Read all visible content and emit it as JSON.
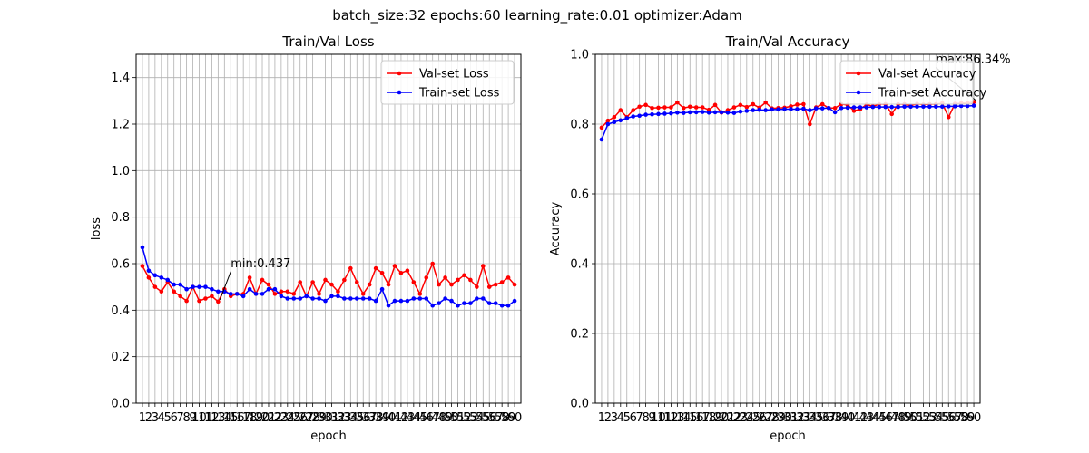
{
  "figure": {
    "suptitle": "batch_size:32   epochs:60   learning_rate:0.01   optimizer:Adam"
  },
  "chart_data": [
    {
      "type": "line",
      "title": "Train/Val Loss",
      "xlabel": "epoch",
      "ylabel": "loss",
      "ylim": [
        0,
        1.5
      ],
      "yticks": [
        "0.0",
        "0.2",
        "0.4",
        "0.6",
        "0.8",
        "1.0",
        "1.2",
        "1.4"
      ],
      "grid": true,
      "legend_loc": "upper right",
      "x": [
        1,
        2,
        3,
        4,
        5,
        6,
        7,
        8,
        9,
        10,
        11,
        12,
        13,
        14,
        15,
        16,
        17,
        18,
        19,
        20,
        21,
        22,
        23,
        24,
        25,
        26,
        27,
        28,
        29,
        30,
        31,
        32,
        33,
        34,
        35,
        36,
        37,
        38,
        39,
        40,
        41,
        42,
        43,
        44,
        45,
        46,
        47,
        48,
        49,
        50,
        51,
        52,
        53,
        54,
        55,
        56,
        57,
        58,
        59,
        60
      ],
      "series": [
        {
          "name": "Val-set Loss",
          "color": "#ff0000",
          "values": [
            0.59,
            0.54,
            0.5,
            0.48,
            0.52,
            0.48,
            0.46,
            0.44,
            0.5,
            0.44,
            0.45,
            0.46,
            0.437,
            0.49,
            0.46,
            0.47,
            0.47,
            0.54,
            0.47,
            0.53,
            0.51,
            0.47,
            0.48,
            0.48,
            0.47,
            0.52,
            0.46,
            0.52,
            0.47,
            0.53,
            0.51,
            0.48,
            0.53,
            0.58,
            0.52,
            0.47,
            0.51,
            0.58,
            0.56,
            0.51,
            0.59,
            0.56,
            0.57,
            0.52,
            0.47,
            0.54,
            0.6,
            0.51,
            0.54,
            0.51,
            0.53,
            0.55,
            0.53,
            0.5,
            0.59,
            0.5,
            0.51,
            0.52,
            0.54,
            0.51
          ]
        },
        {
          "name": "Train-set Loss",
          "color": "#0000ff",
          "values": [
            0.67,
            0.57,
            0.55,
            0.54,
            0.53,
            0.51,
            0.51,
            0.49,
            0.5,
            0.5,
            0.5,
            0.49,
            0.48,
            0.48,
            0.47,
            0.47,
            0.46,
            0.49,
            0.47,
            0.47,
            0.49,
            0.49,
            0.46,
            0.45,
            0.45,
            0.45,
            0.46,
            0.45,
            0.45,
            0.44,
            0.46,
            0.46,
            0.45,
            0.45,
            0.45,
            0.45,
            0.45,
            0.44,
            0.49,
            0.42,
            0.44,
            0.44,
            0.44,
            0.45,
            0.45,
            0.45,
            0.42,
            0.43,
            0.45,
            0.44,
            0.42,
            0.43,
            0.43,
            0.45,
            0.45,
            0.43,
            0.43,
            0.42,
            0.42,
            0.44
          ]
        }
      ],
      "annotation": {
        "text": "min:0.437",
        "x": 13,
        "y": 0.437,
        "text_x": 15,
        "text_y": 0.585
      }
    },
    {
      "type": "line",
      "title": "Train/Val Accuracy",
      "xlabel": "epoch",
      "ylabel": "Accuracy",
      "ylim": [
        0,
        1.0
      ],
      "yticks": [
        "0.0",
        "0.2",
        "0.4",
        "0.6",
        "0.8",
        "1.0"
      ],
      "grid": true,
      "legend_loc": "upper right",
      "x": [
        1,
        2,
        3,
        4,
        5,
        6,
        7,
        8,
        9,
        10,
        11,
        12,
        13,
        14,
        15,
        16,
        17,
        18,
        19,
        20,
        21,
        22,
        23,
        24,
        25,
        26,
        27,
        28,
        29,
        30,
        31,
        32,
        33,
        34,
        35,
        36,
        37,
        38,
        39,
        40,
        41,
        42,
        43,
        44,
        45,
        46,
        47,
        48,
        49,
        50,
        51,
        52,
        53,
        54,
        55,
        56,
        57,
        58,
        59,
        60
      ],
      "series": [
        {
          "name": "Val-set Accuracy",
          "color": "#ff0000",
          "values": [
            0.79,
            0.81,
            0.82,
            0.84,
            0.82,
            0.84,
            0.85,
            0.855,
            0.846,
            0.847,
            0.848,
            0.848,
            0.862,
            0.846,
            0.85,
            0.848,
            0.848,
            0.841,
            0.855,
            0.833,
            0.84,
            0.848,
            0.855,
            0.849,
            0.857,
            0.847,
            0.862,
            0.845,
            0.846,
            0.847,
            0.851,
            0.856,
            0.857,
            0.8,
            0.848,
            0.857,
            0.846,
            0.846,
            0.857,
            0.855,
            0.838,
            0.843,
            0.856,
            0.851,
            0.857,
            0.857,
            0.829,
            0.857,
            0.857,
            0.853,
            0.858,
            0.856,
            0.857,
            0.857,
            0.86,
            0.82,
            0.858,
            0.86,
            0.86,
            0.8634
          ]
        },
        {
          "name": "Train-set Accuracy",
          "color": "#0000ff",
          "values": [
            0.756,
            0.8,
            0.806,
            0.811,
            0.817,
            0.822,
            0.824,
            0.827,
            0.828,
            0.829,
            0.83,
            0.831,
            0.833,
            0.832,
            0.834,
            0.834,
            0.835,
            0.833,
            0.834,
            0.834,
            0.833,
            0.832,
            0.836,
            0.838,
            0.84,
            0.841,
            0.84,
            0.842,
            0.842,
            0.843,
            0.843,
            0.843,
            0.844,
            0.84,
            0.845,
            0.845,
            0.846,
            0.834,
            0.846,
            0.847,
            0.848,
            0.848,
            0.848,
            0.849,
            0.849,
            0.849,
            0.849,
            0.849,
            0.85,
            0.85,
            0.85,
            0.85,
            0.85,
            0.85,
            0.85,
            0.851,
            0.851,
            0.852,
            0.852,
            0.853
          ]
        }
      ],
      "annotation": {
        "text": "max:86.34%",
        "x": 60,
        "y": 0.8634,
        "text_x": 54,
        "text_y": 0.975
      }
    }
  ]
}
